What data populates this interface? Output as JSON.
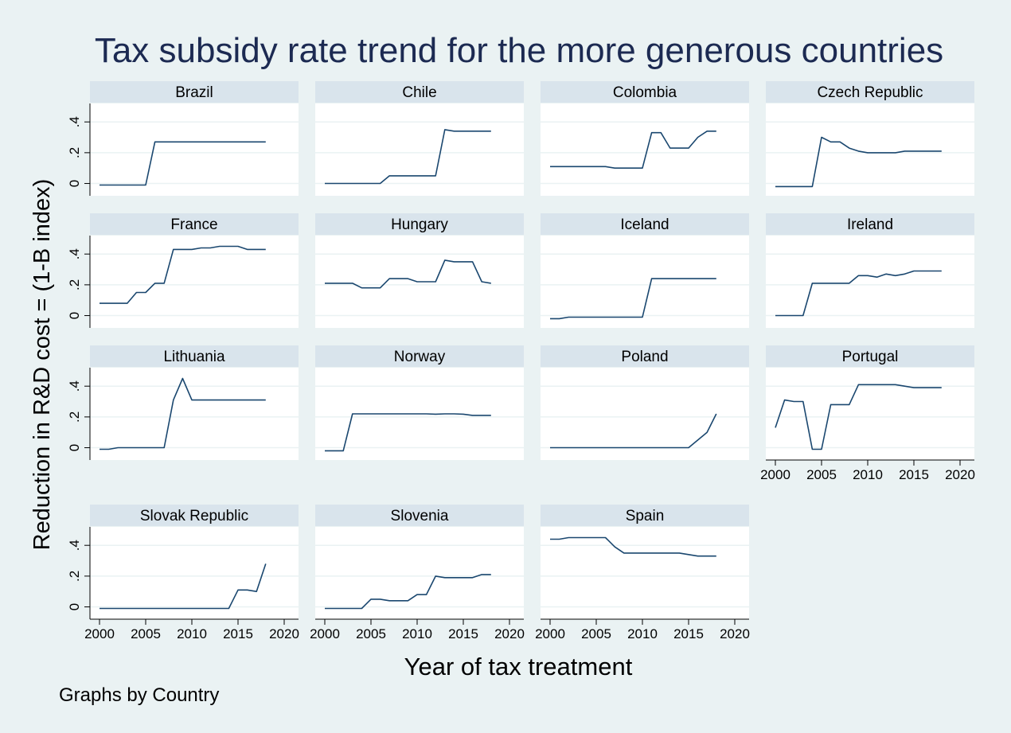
{
  "figure": {
    "title": "Tax subsidy rate trend for the more generous countries",
    "xlabel": "Year of tax treatment",
    "ylabel": "Reduction in R&D cost = (1-B index)",
    "note": "Graphs by Country"
  },
  "colors": {
    "background": "#eaf2f3",
    "plot_background": "#ffffff",
    "panel_header": "#d9e4ec",
    "line": "#1a476f",
    "title": "#1c2a52",
    "grid": "#eaf2f3"
  },
  "chart_data": {
    "type": "line",
    "layout": "small-multiples",
    "xlim": [
      2000,
      2020
    ],
    "ylim": [
      -0.08,
      0.52
    ],
    "x_ticks": [
      2000,
      2005,
      2010,
      2015,
      2020
    ],
    "x_tick_labels": [
      "2000",
      "2005",
      "2010",
      "2015",
      "2020"
    ],
    "y_ticks": [
      0,
      0.2,
      0.4
    ],
    "y_tick_labels": [
      "0",
      ".2",
      ".4"
    ],
    "grid": true,
    "panels": [
      {
        "name": "Brazil",
        "x": [
          2000,
          2001,
          2002,
          2003,
          2004,
          2005,
          2006,
          2007,
          2008,
          2009,
          2010,
          2011,
          2012,
          2013,
          2014,
          2015,
          2016,
          2017,
          2018
        ],
        "y": [
          -0.01,
          -0.01,
          -0.01,
          -0.01,
          -0.01,
          -0.01,
          0.27,
          0.27,
          0.27,
          0.27,
          0.27,
          0.27,
          0.27,
          0.27,
          0.27,
          0.27,
          0.27,
          0.27,
          0.27
        ]
      },
      {
        "name": "Chile",
        "x": [
          2000,
          2001,
          2002,
          2003,
          2004,
          2005,
          2006,
          2007,
          2008,
          2009,
          2010,
          2011,
          2012,
          2013,
          2014,
          2015,
          2016,
          2017,
          2018
        ],
        "y": [
          0,
          0,
          0,
          0,
          0,
          0,
          0,
          0.05,
          0.05,
          0.05,
          0.05,
          0.05,
          0.05,
          0.35,
          0.34,
          0.34,
          0.34,
          0.34,
          0.34
        ]
      },
      {
        "name": "Colombia",
        "x": [
          2000,
          2001,
          2002,
          2003,
          2004,
          2005,
          2006,
          2007,
          2008,
          2009,
          2010,
          2011,
          2012,
          2013,
          2014,
          2015,
          2016,
          2017,
          2018
        ],
        "y": [
          0.11,
          0.11,
          0.11,
          0.11,
          0.11,
          0.11,
          0.11,
          0.1,
          0.1,
          0.1,
          0.1,
          0.33,
          0.33,
          0.23,
          0.23,
          0.23,
          0.3,
          0.34,
          0.34
        ]
      },
      {
        "name": "Czech Republic",
        "x": [
          2000,
          2001,
          2002,
          2003,
          2004,
          2005,
          2006,
          2007,
          2008,
          2009,
          2010,
          2011,
          2012,
          2013,
          2014,
          2015,
          2016,
          2017,
          2018
        ],
        "y": [
          -0.02,
          -0.02,
          -0.02,
          -0.02,
          -0.02,
          0.3,
          0.27,
          0.27,
          0.23,
          0.21,
          0.2,
          0.2,
          0.2,
          0.2,
          0.21,
          0.21,
          0.21,
          0.21,
          0.21
        ]
      },
      {
        "name": "France",
        "x": [
          2000,
          2001,
          2002,
          2003,
          2004,
          2005,
          2006,
          2007,
          2008,
          2009,
          2010,
          2011,
          2012,
          2013,
          2014,
          2015,
          2016,
          2017,
          2018
        ],
        "y": [
          0.08,
          0.08,
          0.08,
          0.08,
          0.15,
          0.15,
          0.21,
          0.21,
          0.43,
          0.43,
          0.43,
          0.44,
          0.44,
          0.45,
          0.45,
          0.45,
          0.43,
          0.43,
          0.43
        ]
      },
      {
        "name": "Hungary",
        "x": [
          2000,
          2001,
          2002,
          2003,
          2004,
          2005,
          2006,
          2007,
          2008,
          2009,
          2010,
          2011,
          2012,
          2013,
          2014,
          2015,
          2016,
          2017,
          2018
        ],
        "y": [
          0.21,
          0.21,
          0.21,
          0.21,
          0.18,
          0.18,
          0.18,
          0.24,
          0.24,
          0.24,
          0.22,
          0.22,
          0.22,
          0.36,
          0.35,
          0.35,
          0.35,
          0.22,
          0.21
        ]
      },
      {
        "name": "Iceland",
        "x": [
          2000,
          2001,
          2002,
          2003,
          2004,
          2005,
          2006,
          2007,
          2008,
          2009,
          2010,
          2011,
          2012,
          2013,
          2014,
          2015,
          2016,
          2017,
          2018
        ],
        "y": [
          -0.02,
          -0.02,
          -0.01,
          -0.01,
          -0.01,
          -0.01,
          -0.01,
          -0.01,
          -0.01,
          -0.01,
          -0.01,
          0.24,
          0.24,
          0.24,
          0.24,
          0.24,
          0.24,
          0.24,
          0.24
        ]
      },
      {
        "name": "Ireland",
        "x": [
          2000,
          2001,
          2002,
          2003,
          2004,
          2005,
          2006,
          2007,
          2008,
          2009,
          2010,
          2011,
          2012,
          2013,
          2014,
          2015,
          2016,
          2017,
          2018
        ],
        "y": [
          0,
          0,
          0,
          0,
          0.21,
          0.21,
          0.21,
          0.21,
          0.21,
          0.26,
          0.26,
          0.25,
          0.27,
          0.26,
          0.27,
          0.29,
          0.29,
          0.29,
          0.29
        ]
      },
      {
        "name": "Lithuania",
        "x": [
          2000,
          2001,
          2002,
          2003,
          2004,
          2005,
          2006,
          2007,
          2008,
          2009,
          2010,
          2011,
          2012,
          2013,
          2014,
          2015,
          2016,
          2017,
          2018
        ],
        "y": [
          -0.01,
          -0.01,
          0,
          0,
          0,
          0,
          0,
          0,
          0.31,
          0.45,
          0.31,
          0.31,
          0.31,
          0.31,
          0.31,
          0.31,
          0.31,
          0.31,
          0.31
        ]
      },
      {
        "name": "Norway",
        "x": [
          2000,
          2001,
          2002,
          2003,
          2004,
          2005,
          2006,
          2007,
          2008,
          2009,
          2010,
          2011,
          2012,
          2013,
          2014,
          2015,
          2016,
          2017,
          2018
        ],
        "y": [
          -0.02,
          -0.02,
          -0.02,
          0.22,
          0.22,
          0.22,
          0.22,
          0.22,
          0.22,
          0.22,
          0.22,
          0.22,
          0.218,
          0.22,
          0.22,
          0.218,
          0.21,
          0.21,
          0.21
        ]
      },
      {
        "name": "Poland",
        "x": [
          2000,
          2001,
          2002,
          2003,
          2004,
          2005,
          2006,
          2007,
          2008,
          2009,
          2010,
          2011,
          2012,
          2013,
          2014,
          2015,
          2016,
          2017,
          2018
        ],
        "y": [
          0,
          0,
          0,
          0,
          0,
          0,
          0,
          0,
          0,
          0,
          0,
          0,
          0,
          0,
          0,
          0,
          0.05,
          0.1,
          0.22
        ]
      },
      {
        "name": "Portugal",
        "x": [
          2000,
          2001,
          2002,
          2003,
          2004,
          2005,
          2006,
          2007,
          2008,
          2009,
          2010,
          2011,
          2012,
          2013,
          2014,
          2015,
          2016,
          2017,
          2018
        ],
        "y": [
          0.13,
          0.31,
          0.3,
          0.3,
          -0.01,
          -0.01,
          0.28,
          0.28,
          0.28,
          0.41,
          0.41,
          0.41,
          0.41,
          0.41,
          0.4,
          0.39,
          0.39,
          0.39,
          0.39
        ]
      },
      {
        "name": "Slovak Republic",
        "x": [
          2000,
          2001,
          2002,
          2003,
          2004,
          2005,
          2006,
          2007,
          2008,
          2009,
          2010,
          2011,
          2012,
          2013,
          2014,
          2015,
          2016,
          2017,
          2018
        ],
        "y": [
          -0.01,
          -0.01,
          -0.01,
          -0.01,
          -0.01,
          -0.01,
          -0.01,
          -0.01,
          -0.01,
          -0.01,
          -0.01,
          -0.01,
          -0.01,
          -0.01,
          -0.01,
          0.11,
          0.11,
          0.1,
          0.28
        ]
      },
      {
        "name": "Slovenia",
        "x": [
          2000,
          2001,
          2002,
          2003,
          2004,
          2005,
          2006,
          2007,
          2008,
          2009,
          2010,
          2011,
          2012,
          2013,
          2014,
          2015,
          2016,
          2017,
          2018
        ],
        "y": [
          -0.01,
          -0.01,
          -0.01,
          -0.01,
          -0.01,
          0.05,
          0.05,
          0.04,
          0.04,
          0.04,
          0.08,
          0.08,
          0.2,
          0.19,
          0.19,
          0.19,
          0.19,
          0.21,
          0.21
        ]
      },
      {
        "name": "Spain",
        "x": [
          2000,
          2001,
          2002,
          2003,
          2004,
          2005,
          2006,
          2007,
          2008,
          2009,
          2010,
          2011,
          2012,
          2013,
          2014,
          2015,
          2016,
          2017,
          2018
        ],
        "y": [
          0.44,
          0.44,
          0.45,
          0.45,
          0.45,
          0.45,
          0.45,
          0.39,
          0.35,
          0.35,
          0.35,
          0.35,
          0.35,
          0.35,
          0.35,
          0.34,
          0.33,
          0.33,
          0.33
        ]
      }
    ]
  }
}
